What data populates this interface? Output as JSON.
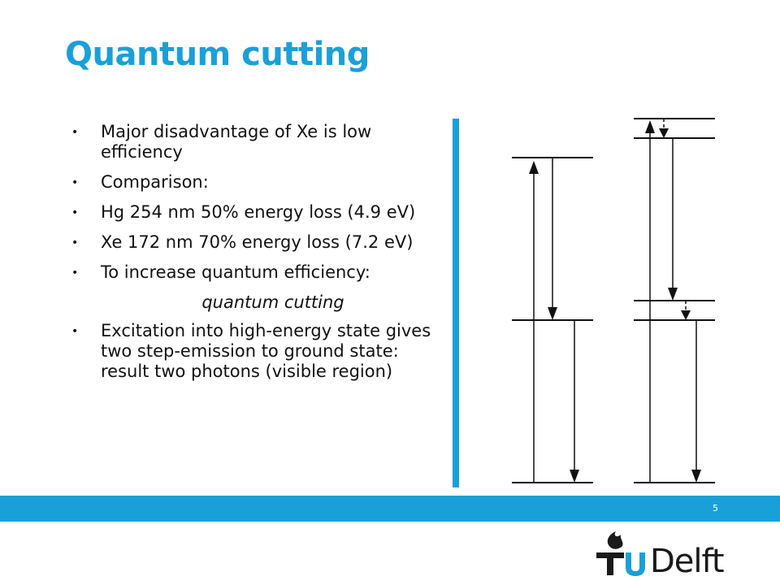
{
  "slide": {
    "title": "Quantum cutting",
    "bullets": [
      "Major disadvantage of Xe is low efficiency",
      "Comparison:",
      "Hg 254 nm 50% energy loss (4.9 eV)",
      "Xe 172 nm 70% energy loss (7.2 eV)",
      "To increase quantum efficiency:"
    ],
    "sub_item": "quantum cutting",
    "last_bullet": "Excitation into high-energy state gives two step-emission to ground state: result two photons (visible region)",
    "bullet_symbol": "•",
    "page_number": "5"
  },
  "logo": {
    "text": "Delft",
    "letters": "TU",
    "icon": "flame-icon"
  },
  "colors": {
    "accent": "#1aa0d8",
    "text": "#111111"
  }
}
